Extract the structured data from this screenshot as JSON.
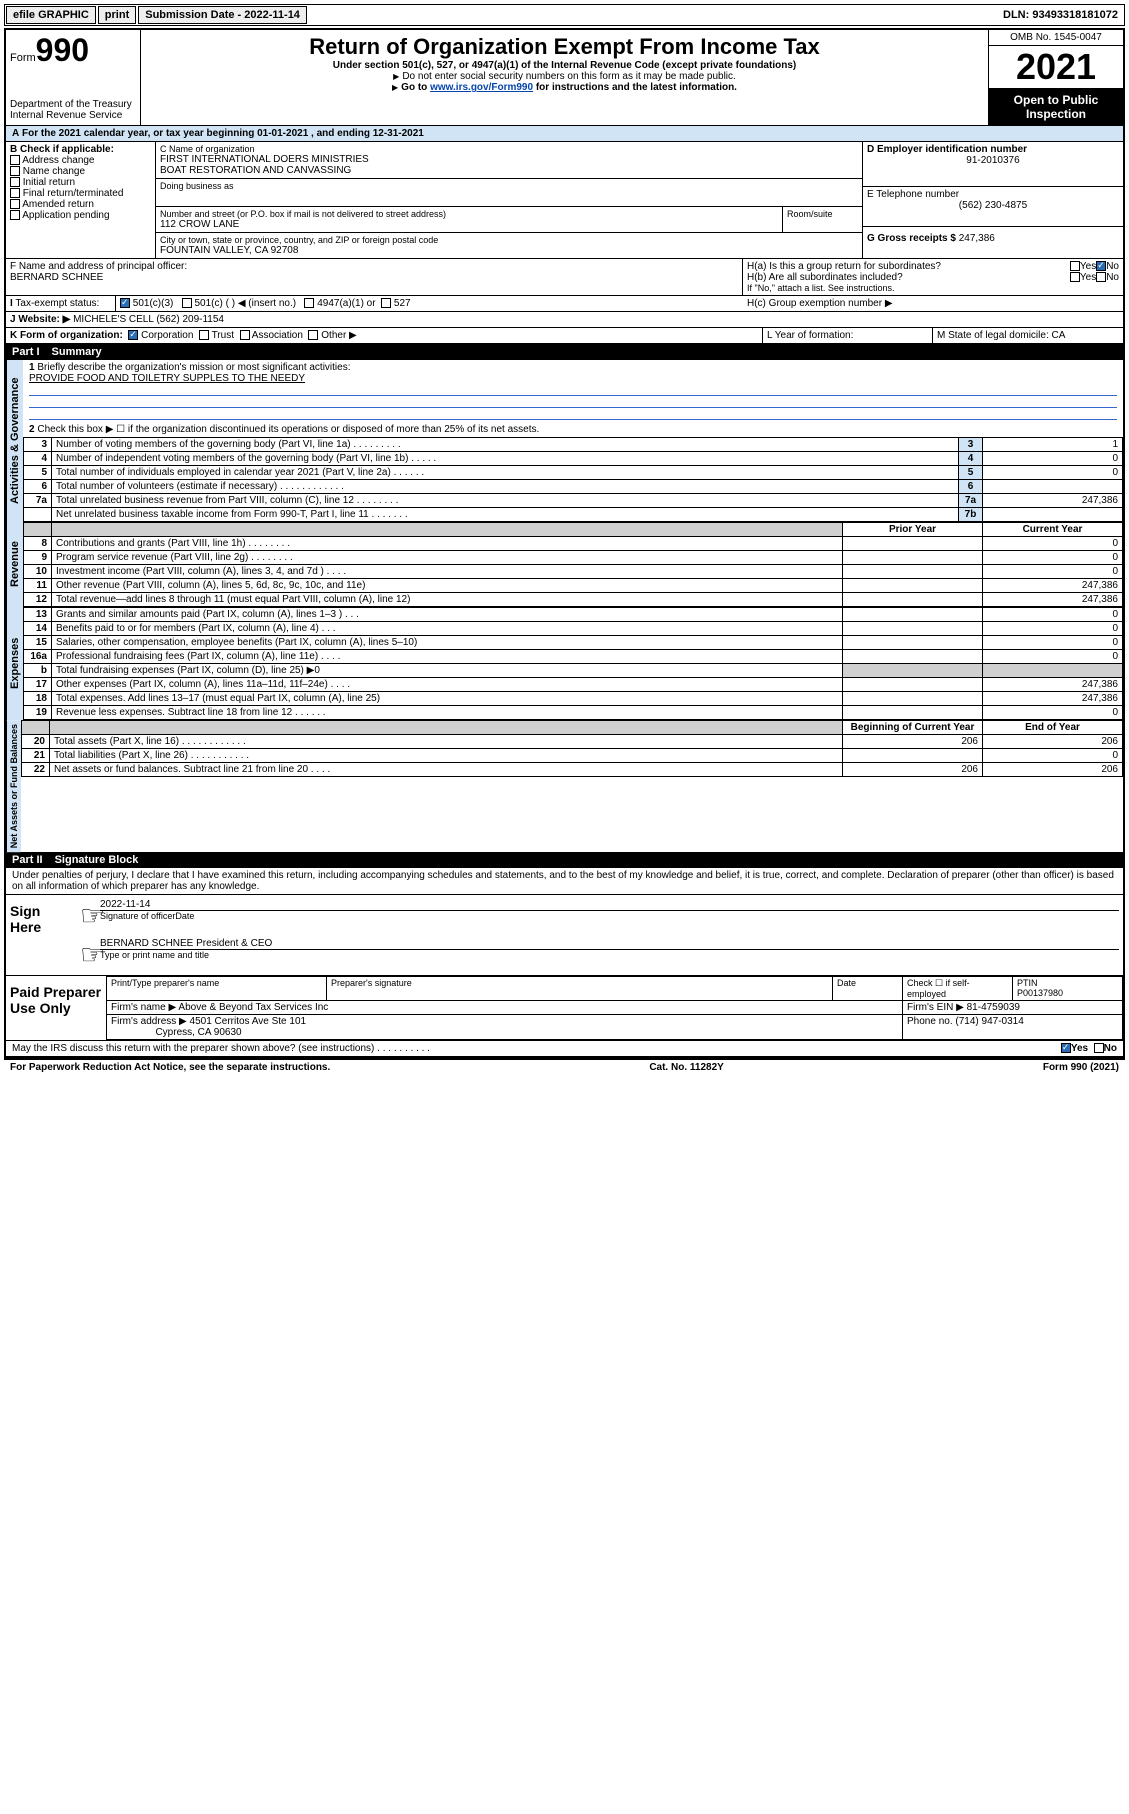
{
  "topbar": {
    "efile": "efile GRAPHIC",
    "print": "print",
    "subdate_lbl": "Submission Date - 2022-11-14",
    "dln": "DLN: 93493318181072"
  },
  "header": {
    "form_prefix": "Form",
    "form_num": "990",
    "dept": "Department of the Treasury",
    "irs": "Internal Revenue Service",
    "title": "Return of Organization Exempt From Income Tax",
    "sub1": "Under section 501(c), 527, or 4947(a)(1) of the Internal Revenue Code (except private foundations)",
    "note1": "Do not enter social security numbers on this form as it may be made public.",
    "note2_pre": "Go to ",
    "note2_link": "www.irs.gov/Form990",
    "note2_post": " for instructions and the latest information.",
    "omb": "OMB No. 1545-0047",
    "year": "2021",
    "open": "Open to Public Inspection"
  },
  "A": {
    "line": "For the 2021 calendar year, or tax year beginning 01-01-2021    , and ending 12-31-2021"
  },
  "B": {
    "title": "B Check if applicable:",
    "opts": [
      "Address change",
      "Name change",
      "Initial return",
      "Final return/terminated",
      "Amended return",
      "Application pending"
    ]
  },
  "C": {
    "lbl": "C Name of organization",
    "name1": "FIRST INTERNATIONAL DOERS MINISTRIES",
    "name2": "BOAT RESTORATION AND CANVASSING",
    "dba": "Doing business as",
    "addr_lbl": "Number and street (or P.O. box if mail is not delivered to street address)",
    "room_lbl": "Room/suite",
    "addr": "112 CROW LANE",
    "city_lbl": "City or town, state or province, country, and ZIP or foreign postal code",
    "city": "FOUNTAIN VALLEY, CA  92708"
  },
  "D": {
    "lbl": "D Employer identification number",
    "val": "91-2010376"
  },
  "E": {
    "lbl": "E Telephone number",
    "val": "(562) 230-4875"
  },
  "G": {
    "lbl": "G Gross receipts $",
    "val": "247,386"
  },
  "F": {
    "lbl": "F  Name and address of principal officer:",
    "val": "BERNARD SCHNEE"
  },
  "H": {
    "a": "H(a)  Is this a group return for subordinates?",
    "b": "H(b)  Are all subordinates included?",
    "bnote": "If \"No,\" attach a list. See instructions.",
    "c": "H(c)  Group exemption number ▶",
    "yes": "Yes",
    "no": "No"
  },
  "I": {
    "lbl": "Tax-exempt status:",
    "o1": "501(c)(3)",
    "o2": "501(c) (  ) ◀ (insert no.)",
    "o3": "4947(a)(1) or",
    "o4": "527"
  },
  "J": {
    "lbl": "Website: ▶",
    "val": "MICHELE'S CELL (562) 209-1154"
  },
  "K": {
    "lbl": "K Form of organization:",
    "o1": "Corporation",
    "o2": "Trust",
    "o3": "Association",
    "o4": "Other ▶"
  },
  "L": {
    "lbl": "L Year of formation:"
  },
  "M": {
    "lbl": "M State of legal domicile: CA"
  },
  "part1": {
    "hdr": "Part I",
    "title": "Summary"
  },
  "summary": {
    "l1": "Briefly describe the organization's mission or most significant activities:",
    "l1v": "PROVIDE FOOD AND TOILETRY SUPPLES TO THE NEEDY",
    "l2": "Check this box ▶ ☐  if the organization discontinued its operations or disposed of more than 25% of its net assets.",
    "rows_gov": [
      {
        "n": "3",
        "t": "Number of voting members of the governing body (Part VI, line 1a)  .    .    .    .    .    .    .    .    .",
        "rn": "3",
        "v": "1"
      },
      {
        "n": "4",
        "t": "Number of independent voting members of the governing body (Part VI, line 1b)  .    .    .    .    .",
        "rn": "4",
        "v": "0"
      },
      {
        "n": "5",
        "t": "Total number of individuals employed in calendar year 2021 (Part V, line 2a)  .    .    .    .    .    .",
        "rn": "5",
        "v": "0"
      },
      {
        "n": "6",
        "t": "Total number of volunteers (estimate if necessary)  .    .    .    .    .    .    .    .    .    .    .    .",
        "rn": "6",
        "v": ""
      },
      {
        "n": "7a",
        "t": "Total unrelated business revenue from Part VIII, column (C), line 12  .    .    .    .    .    .    .    .",
        "rn": "7a",
        "v": "247,386"
      },
      {
        "n": "",
        "t": "Net unrelated business taxable income from Form 990-T, Part I, line 11  .    .    .    .    .    .    .",
        "rn": "7b",
        "v": ""
      }
    ],
    "col_py": "Prior Year",
    "col_cy": "Current Year",
    "rows_rev": [
      {
        "n": "8",
        "t": "Contributions and grants (Part VIII, line 1h)  .    .    .    .    .    .    .    .",
        "py": "",
        "cy": "0"
      },
      {
        "n": "9",
        "t": "Program service revenue (Part VIII, line 2g)  .    .    .    .    .    .    .    .",
        "py": "",
        "cy": "0"
      },
      {
        "n": "10",
        "t": "Investment income (Part VIII, column (A), lines 3, 4, and 7d )  .    .    .    .",
        "py": "",
        "cy": "0"
      },
      {
        "n": "11",
        "t": "Other revenue (Part VIII, column (A), lines 5, 6d, 8c, 9c, 10c, and 11e)",
        "py": "",
        "cy": "247,386"
      },
      {
        "n": "12",
        "t": "Total revenue—add lines 8 through 11 (must equal Part VIII, column (A), line 12)",
        "py": "",
        "cy": "247,386"
      }
    ],
    "rows_exp": [
      {
        "n": "13",
        "t": "Grants and similar amounts paid (Part IX, column (A), lines 1–3 )  .    .    .",
        "py": "",
        "cy": "0"
      },
      {
        "n": "14",
        "t": "Benefits paid to or for members (Part IX, column (A), line 4)  .    .    .",
        "py": "",
        "cy": "0"
      },
      {
        "n": "15",
        "t": "Salaries, other compensation, employee benefits (Part IX, column (A), lines 5–10)",
        "py": "",
        "cy": "0"
      },
      {
        "n": "16a",
        "t": "Professional fundraising fees (Part IX, column (A), line 11e)  .    .    .    .",
        "py": "",
        "cy": "0"
      },
      {
        "n": "b",
        "t": "Total fundraising expenses (Part IX, column (D), line 25) ▶0",
        "py": "SHADE",
        "cy": "SHADE"
      },
      {
        "n": "17",
        "t": "Other expenses (Part IX, column (A), lines 11a–11d, 11f–24e)  .    .    .    .",
        "py": "",
        "cy": "247,386"
      },
      {
        "n": "18",
        "t": "Total expenses. Add lines 13–17 (must equal Part IX, column (A), line 25)",
        "py": "",
        "cy": "247,386"
      },
      {
        "n": "19",
        "t": "Revenue less expenses. Subtract line 18 from line 12  .    .    .    .    .    .",
        "py": "",
        "cy": "0"
      }
    ],
    "col_boy": "Beginning of Current Year",
    "col_eoy": "End of Year",
    "rows_net": [
      {
        "n": "20",
        "t": "Total assets (Part X, line 16)  .    .    .    .    .    .    .    .    .    .    .    .",
        "py": "206",
        "cy": "206"
      },
      {
        "n": "21",
        "t": "Total liabilities (Part X, line 26)  .    .    .    .    .    .    .    .    .    .    .",
        "py": "",
        "cy": "0"
      },
      {
        "n": "22",
        "t": "Net assets or fund balances. Subtract line 21 from line 20  .    .    .    .",
        "py": "206",
        "cy": "206"
      }
    ],
    "vlabels": {
      "gov": "Activities & Governance",
      "rev": "Revenue",
      "exp": "Expenses",
      "net": "Net Assets or Fund Balances"
    }
  },
  "part2": {
    "hdr": "Part II",
    "title": "Signature Block"
  },
  "sig": {
    "decl": "Under penalties of perjury, I declare that I have examined this return, including accompanying schedules and statements, and to the best of my knowledge and belief, it is true, correct, and complete. Declaration of preparer (other than officer) is based on all information of which preparer has any knowledge.",
    "sign_here": "Sign Here",
    "sig_officer": "Signature of officer",
    "date": "Date",
    "date_v": "2022-11-14",
    "name": "BERNARD SCHNEE President & CEO",
    "name_lbl": "Type or print name and title",
    "paid": "Paid Preparer Use Only",
    "p_name": "Print/Type preparer's name",
    "p_sig": "Preparer's signature",
    "p_date": "Date",
    "p_check": "Check ☐ if self-employed",
    "ptin": "PTIN",
    "ptin_v": "P00137980",
    "firm": "Firm's name   ▶",
    "firm_v": "Above & Beyond Tax Services Inc",
    "ein": "Firm's EIN ▶",
    "ein_v": "81-4759039",
    "addr": "Firm's address ▶",
    "addr_v1": "4501 Cerritos Ave Ste 101",
    "addr_v2": "Cypress, CA  90630",
    "phone": "Phone no.",
    "phone_v": "(714) 947-0314",
    "may": "May the IRS discuss this return with the preparer shown above? (see instructions)  .    .    .    .    .    .    .    .    .    .",
    "yes": "Yes",
    "no": "No"
  },
  "footer": {
    "pra": "For Paperwork Reduction Act Notice, see the separate instructions.",
    "cat": "Cat. No. 11282Y",
    "form": "Form 990 (2021)"
  }
}
